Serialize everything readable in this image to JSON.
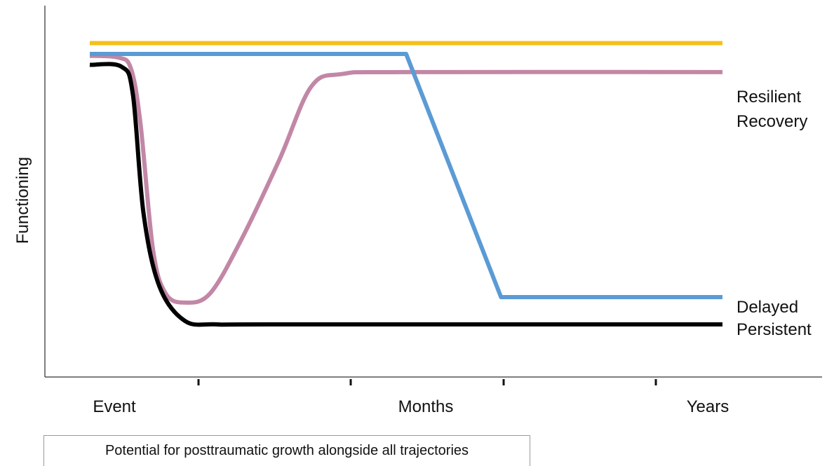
{
  "chart_data": {
    "type": "line",
    "ylabel": "Functioning",
    "x_tick_labels": [
      "Event",
      "Months",
      "Years"
    ],
    "x_ticks": 4,
    "series": [
      {
        "name": "Resilient",
        "color": "#F5C018",
        "values": [
          [
            0,
            0.92
          ],
          [
            10,
            0.92
          ]
        ]
      },
      {
        "name": "Recovery",
        "color": "#C287A6",
        "values": [
          [
            0,
            0.885
          ],
          [
            0.45,
            0.88
          ],
          [
            0.65,
            0.85
          ],
          [
            0.8,
            0.7
          ],
          [
            1.0,
            0.35
          ],
          [
            1.2,
            0.23
          ],
          [
            1.5,
            0.205
          ],
          [
            1.9,
            0.23
          ],
          [
            2.4,
            0.38
          ],
          [
            3.0,
            0.6
          ],
          [
            3.5,
            0.8
          ],
          [
            4.0,
            0.835
          ],
          [
            5.0,
            0.84
          ],
          [
            10,
            0.84
          ]
        ]
      },
      {
        "name": "Delayed",
        "color": "#5B9BD5",
        "values": [
          [
            0,
            0.89
          ],
          [
            5.0,
            0.89
          ],
          [
            6.5,
            0.22
          ],
          [
            10,
            0.22
          ]
        ]
      },
      {
        "name": "Persistent",
        "color": "#000000",
        "values": [
          [
            0,
            0.86
          ],
          [
            0.5,
            0.855
          ],
          [
            0.68,
            0.78
          ],
          [
            0.85,
            0.45
          ],
          [
            1.1,
            0.25
          ],
          [
            1.5,
            0.155
          ],
          [
            2.0,
            0.145
          ],
          [
            3.0,
            0.145
          ],
          [
            10,
            0.145
          ]
        ]
      }
    ],
    "note": "Potential for posttraumatic growth alongside all trajectories"
  }
}
